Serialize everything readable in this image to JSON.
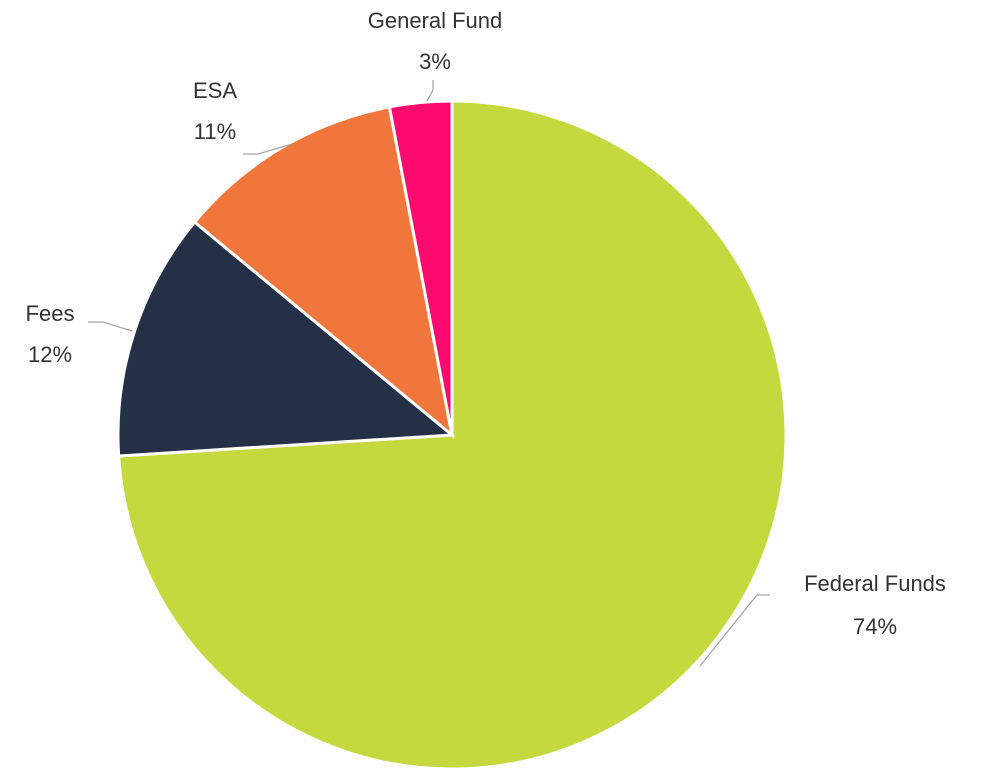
{
  "chart_data": {
    "type": "pie",
    "categories": [
      "Federal Funds",
      "Fees",
      "ESA",
      "General Fund"
    ],
    "values": [
      74,
      12,
      11,
      3
    ],
    "value_labels": [
      "74%",
      "12%",
      "11%",
      "3%"
    ],
    "colors": [
      "#c5d93e",
      "#243045",
      "#f0763b",
      "#fd0a6e"
    ]
  }
}
